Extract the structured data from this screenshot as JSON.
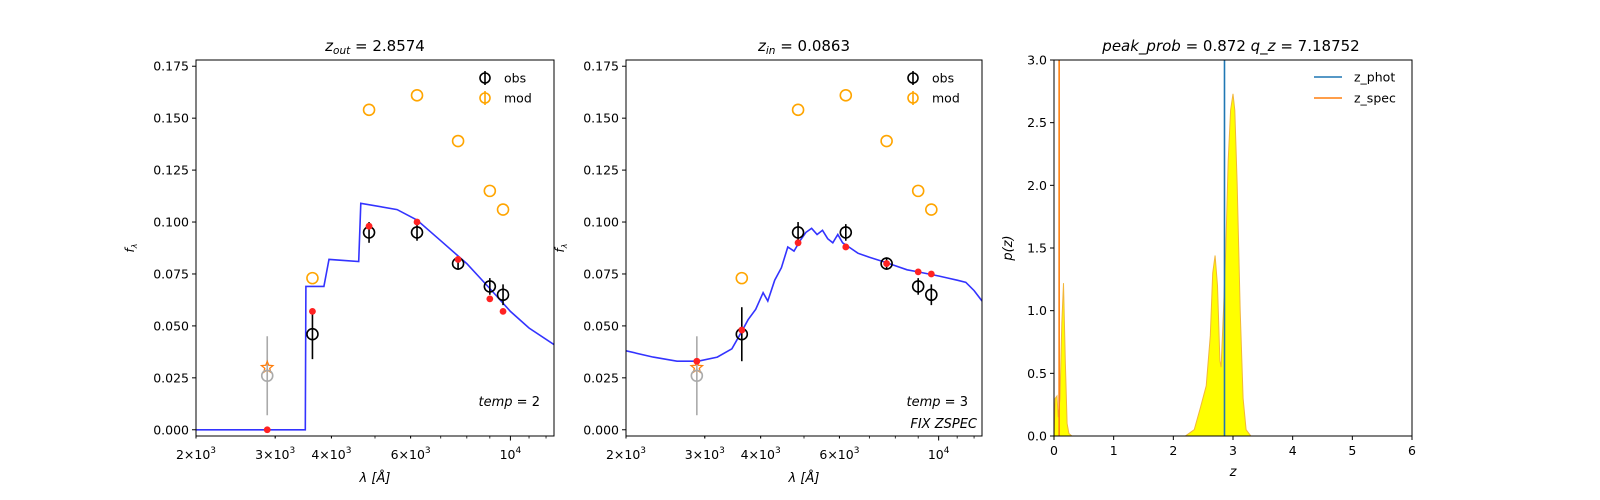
{
  "colors": {
    "obs": "#000000",
    "mod": "#ffa500",
    "phot": "#1f77b4",
    "spec": "#ff7f0e",
    "model_line": "#3333ff",
    "model_points": "#ff2222",
    "filled": "#ffff00",
    "excluded": "#aaaaaa"
  },
  "chart_data": [
    {
      "type": "scatter",
      "title_var": "z",
      "title_sub": "out",
      "title_value": "2.8574",
      "xlabel_var": "λ",
      "xlabel_unit": "[Å]",
      "ylabel": "f",
      "ylabel_sub": "λ",
      "xscale": "log",
      "xlim": [
        2000,
        12500
      ],
      "ylim": [
        -0.003,
        0.178
      ],
      "xtick_labels": [
        {
          "x": 2000,
          "base": "2×10",
          "exp": "3"
        },
        {
          "x": 3000,
          "base": "3×10",
          "exp": "3"
        },
        {
          "x": 4000,
          "base": "4×10",
          "exp": "3"
        },
        {
          "x": 6000,
          "base": "6×10",
          "exp": "3"
        },
        {
          "x": 10000,
          "base": "10",
          "exp": "4"
        }
      ],
      "yticks": [
        "0.000",
        "0.025",
        "0.050",
        "0.075",
        "0.100",
        "0.125",
        "0.150",
        "0.175"
      ],
      "legend": [
        "obs",
        "mod"
      ],
      "legend_position": "top-right",
      "annotation": [
        {
          "var": "temp",
          "value": "2"
        }
      ],
      "obs": [
        {
          "x": 2880,
          "y": 0.026,
          "err": 0.019,
          "excluded": true
        },
        {
          "x": 3630,
          "y": 0.046,
          "err": 0.012
        },
        {
          "x": 4850,
          "y": 0.095,
          "err": 0.005
        },
        {
          "x": 6200,
          "y": 0.095,
          "err": 0.004
        },
        {
          "x": 7650,
          "y": 0.08,
          "err": 0.003
        },
        {
          "x": 9000,
          "y": 0.069,
          "err": 0.004
        },
        {
          "x": 9630,
          "y": 0.065,
          "err": 0.005
        }
      ],
      "mod": [
        {
          "x": 3630,
          "y": 0.073
        },
        {
          "x": 4850,
          "y": 0.154
        },
        {
          "x": 6200,
          "y": 0.161
        },
        {
          "x": 7650,
          "y": 0.139
        },
        {
          "x": 9000,
          "y": 0.115
        },
        {
          "x": 9630,
          "y": 0.106
        }
      ],
      "model_points": [
        {
          "x": 2880,
          "y": 0.0
        },
        {
          "x": 3630,
          "y": 0.057
        },
        {
          "x": 4850,
          "y": 0.098
        },
        {
          "x": 6200,
          "y": 0.1
        },
        {
          "x": 7650,
          "y": 0.082
        },
        {
          "x": 9000,
          "y": 0.063
        },
        {
          "x": 9630,
          "y": 0.057
        }
      ],
      "star": {
        "x": 2880,
        "y": 0.03
      },
      "model_line": [
        [
          2000,
          0.0
        ],
        [
          3500,
          0.0
        ],
        [
          3510,
          0.069
        ],
        [
          3850,
          0.069
        ],
        [
          3950,
          0.082
        ],
        [
          4600,
          0.081
        ],
        [
          4650,
          0.109
        ],
        [
          5600,
          0.106
        ],
        [
          6200,
          0.101
        ],
        [
          7000,
          0.091
        ],
        [
          8000,
          0.08
        ],
        [
          9000,
          0.068
        ],
        [
          10000,
          0.057
        ],
        [
          11000,
          0.049
        ],
        [
          12500,
          0.041
        ]
      ]
    },
    {
      "type": "scatter",
      "title_var": "z",
      "title_sub": "in",
      "title_value": "0.0863",
      "xlabel_var": "λ",
      "xlabel_unit": "[Å]",
      "ylabel": "f",
      "ylabel_sub": "λ",
      "xscale": "log",
      "xlim": [
        2000,
        12500
      ],
      "ylim": [
        -0.003,
        0.178
      ],
      "xtick_labels": [
        {
          "x": 2000,
          "base": "2×10",
          "exp": "3"
        },
        {
          "x": 3000,
          "base": "3×10",
          "exp": "3"
        },
        {
          "x": 4000,
          "base": "4×10",
          "exp": "3"
        },
        {
          "x": 6000,
          "base": "6×10",
          "exp": "3"
        },
        {
          "x": 10000,
          "base": "10",
          "exp": "4"
        }
      ],
      "yticks": [
        "0.000",
        "0.025",
        "0.050",
        "0.075",
        "0.100",
        "0.125",
        "0.150",
        "0.175"
      ],
      "legend": [
        "obs",
        "mod"
      ],
      "legend_position": "top-right",
      "annotation": [
        {
          "var": "temp",
          "value": "3"
        },
        {
          "text": "FIX ZSPEC"
        }
      ],
      "obs": [
        {
          "x": 2880,
          "y": 0.026,
          "err": 0.019,
          "excluded": true
        },
        {
          "x": 3630,
          "y": 0.046,
          "err": 0.013
        },
        {
          "x": 4850,
          "y": 0.095,
          "err": 0.005
        },
        {
          "x": 6200,
          "y": 0.095,
          "err": 0.004
        },
        {
          "x": 7650,
          "y": 0.08,
          "err": 0.003
        },
        {
          "x": 9000,
          "y": 0.069,
          "err": 0.004
        },
        {
          "x": 9630,
          "y": 0.065,
          "err": 0.005
        }
      ],
      "mod": [
        {
          "x": 3630,
          "y": 0.073
        },
        {
          "x": 4850,
          "y": 0.154
        },
        {
          "x": 6200,
          "y": 0.161
        },
        {
          "x": 7650,
          "y": 0.139
        },
        {
          "x": 9000,
          "y": 0.115
        },
        {
          "x": 9630,
          "y": 0.106
        }
      ],
      "model_points": [
        {
          "x": 2880,
          "y": 0.033
        },
        {
          "x": 3630,
          "y": 0.048
        },
        {
          "x": 4850,
          "y": 0.09
        },
        {
          "x": 6200,
          "y": 0.088
        },
        {
          "x": 7650,
          "y": 0.08
        },
        {
          "x": 9000,
          "y": 0.076
        },
        {
          "x": 9630,
          "y": 0.075
        }
      ],
      "star": {
        "x": 2880,
        "y": 0.03
      },
      "model_line": [
        [
          2000,
          0.038
        ],
        [
          2300,
          0.035
        ],
        [
          2600,
          0.033
        ],
        [
          2900,
          0.033
        ],
        [
          3200,
          0.035
        ],
        [
          3450,
          0.039
        ],
        [
          3600,
          0.046
        ],
        [
          3750,
          0.053
        ],
        [
          3900,
          0.058
        ],
        [
          4050,
          0.066
        ],
        [
          4150,
          0.062
        ],
        [
          4300,
          0.072
        ],
        [
          4450,
          0.078
        ],
        [
          4600,
          0.088
        ],
        [
          4750,
          0.086
        ],
        [
          4900,
          0.091
        ],
        [
          5050,
          0.095
        ],
        [
          5200,
          0.097
        ],
        [
          5350,
          0.094
        ],
        [
          5500,
          0.096
        ],
        [
          5650,
          0.092
        ],
        [
          5800,
          0.09
        ],
        [
          5950,
          0.094
        ],
        [
          6100,
          0.09
        ],
        [
          6300,
          0.088
        ],
        [
          6600,
          0.085
        ],
        [
          7000,
          0.083
        ],
        [
          7500,
          0.081
        ],
        [
          8000,
          0.079
        ],
        [
          8500,
          0.077
        ],
        [
          9000,
          0.076
        ],
        [
          9500,
          0.075
        ],
        [
          10000,
          0.074
        ],
        [
          10500,
          0.073
        ],
        [
          11000,
          0.072
        ],
        [
          11500,
          0.071
        ],
        [
          12000,
          0.067
        ],
        [
          12500,
          0.062
        ]
      ]
    },
    {
      "type": "area",
      "title_parts": [
        {
          "var": "peak_prob",
          "value": "0.872"
        },
        {
          "var": "q_z",
          "value": "7.18752"
        }
      ],
      "xlabel_var": "z",
      "ylabel_var": "p(z)",
      "xlim": [
        0,
        6
      ],
      "ylim": [
        0,
        3.0
      ],
      "xticks": [
        "0",
        "1",
        "2",
        "3",
        "4",
        "5",
        "6"
      ],
      "yticks": [
        "0.0",
        "0.5",
        "1.0",
        "1.5",
        "2.0",
        "2.5",
        "3.0"
      ],
      "legend": [
        "z_phot",
        "z_spec"
      ],
      "legend_position": "top-right",
      "z_phot": 2.8574,
      "z_spec": 0.0863,
      "pz": [
        [
          0,
          0
        ],
        [
          0.02,
          0.3
        ],
        [
          0.05,
          0.32
        ],
        [
          0.07,
          0.15
        ],
        [
          0.1,
          0.3
        ],
        [
          0.13,
          0.9
        ],
        [
          0.16,
          1.22
        ],
        [
          0.19,
          0.6
        ],
        [
          0.22,
          0.1
        ],
        [
          0.25,
          0.02
        ],
        [
          0.3,
          0
        ],
        [
          2.2,
          0
        ],
        [
          2.35,
          0.05
        ],
        [
          2.45,
          0.22
        ],
        [
          2.55,
          0.4
        ],
        [
          2.62,
          0.8
        ],
        [
          2.66,
          1.3
        ],
        [
          2.7,
          1.44
        ],
        [
          2.74,
          1.2
        ],
        [
          2.78,
          0.6
        ],
        [
          2.8,
          0.55
        ],
        [
          2.84,
          1.0
        ],
        [
          2.88,
          1.5
        ],
        [
          2.92,
          2.2
        ],
        [
          2.96,
          2.6
        ],
        [
          3.0,
          2.73
        ],
        [
          3.03,
          2.6
        ],
        [
          3.07,
          2.0
        ],
        [
          3.12,
          1.0
        ],
        [
          3.17,
          0.3
        ],
        [
          3.22,
          0.05
        ],
        [
          3.3,
          0
        ],
        [
          5.0,
          0
        ]
      ]
    }
  ]
}
